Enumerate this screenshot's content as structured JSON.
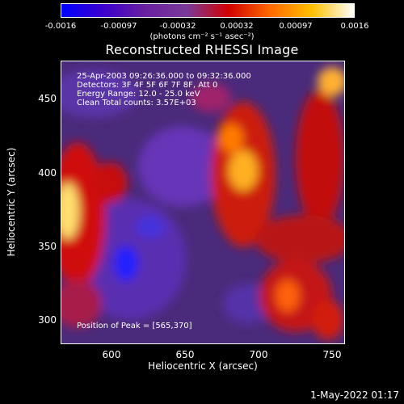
{
  "colorbar": {
    "ticks": [
      "-0.0016",
      "-0.00097",
      "-0.00032",
      "0.00032",
      "0.00097",
      "0.0016"
    ],
    "units": "(photons cm⁻² s⁻¹ asec⁻²)",
    "colors": [
      "#0000ff",
      "#3b00cc",
      "#6a1fa0",
      "#7a3a9a",
      "#d10000",
      "#ff6a00",
      "#ffc000",
      "#ffffff"
    ]
  },
  "title": "Reconstructed RHESSI Image",
  "info": {
    "line1": "25-Apr-2003 09:26:36.000 to 09:32:36.000",
    "line2": "Detectors: 3F 4F 5F 6F 7F 8F, Att 0",
    "line3": "Energy Range: 12.0 - 25.0 keV",
    "line4": "Clean     Total counts: 3.57E+03"
  },
  "peak": "Position of Peak = [565,370]",
  "axes": {
    "xlabel": "Heliocentric X (arcsec)",
    "ylabel": "Heliocentric Y (arcsec)",
    "xticks": [
      "600",
      "650",
      "700",
      "750"
    ],
    "yticks": [
      "450",
      "400",
      "350",
      "300"
    ],
    "xlim": [
      566,
      759
    ],
    "ylim": [
      284,
      476
    ]
  },
  "timestamp": "1-May-2022 01:17"
}
